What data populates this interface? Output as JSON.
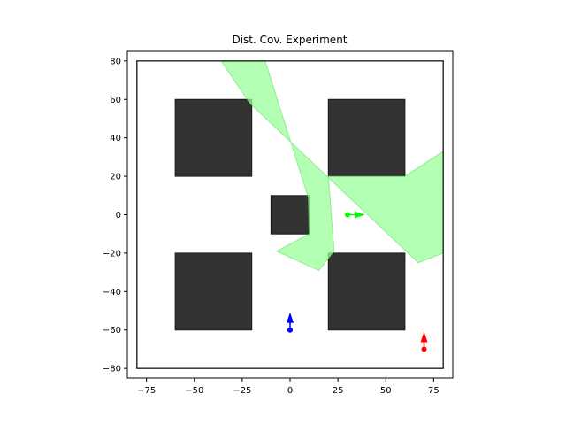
{
  "chart_data": {
    "type": "scatter",
    "title": "Dist. Cov. Experiment",
    "xlabel": "",
    "ylabel": "",
    "xlim": [
      -85,
      85
    ],
    "ylim": [
      -85,
      85
    ],
    "xticks": [
      -75,
      -50,
      -25,
      0,
      25,
      50,
      75
    ],
    "yticks": [
      -80,
      -60,
      -40,
      -20,
      0,
      20,
      40,
      60,
      80
    ],
    "grid": false,
    "boundary": {
      "x": [
        -80,
        80
      ],
      "y": [
        -80,
        80
      ]
    },
    "obstacles": [
      {
        "x": -60,
        "y": 20,
        "w": 40,
        "h": 40
      },
      {
        "x": 20,
        "y": 20,
        "w": 40,
        "h": 40
      },
      {
        "x": -10,
        "y": -10,
        "w": 20,
        "h": 20
      },
      {
        "x": -60,
        "y": -60,
        "w": 40,
        "h": 40
      },
      {
        "x": 20,
        "y": -60,
        "w": 40,
        "h": 40
      }
    ],
    "coverage_polygon": [
      [
        -36,
        80
      ],
      [
        -13,
        80
      ],
      [
        9.5,
        9
      ],
      [
        10,
        -10
      ],
      [
        -7,
        -19
      ],
      [
        15,
        -29
      ],
      [
        23,
        -19
      ],
      [
        20,
        20
      ],
      [
        60,
        20
      ],
      [
        80,
        33
      ],
      [
        80,
        -20
      ],
      [
        67,
        -25
      ],
      [
        -21,
        58
      ]
    ],
    "agents": [
      {
        "name": "green",
        "color": "#00ff00",
        "x": 30,
        "y": 0,
        "heading": "right"
      },
      {
        "name": "blue",
        "color": "#0000ff",
        "x": 0,
        "y": -60,
        "heading": "up"
      },
      {
        "name": "red",
        "color": "#ff0000",
        "x": 70,
        "y": -70,
        "heading": "up"
      }
    ],
    "colors": {
      "obstacle": "#333333",
      "coverage": "#99ff99",
      "axis": "#000000"
    }
  }
}
